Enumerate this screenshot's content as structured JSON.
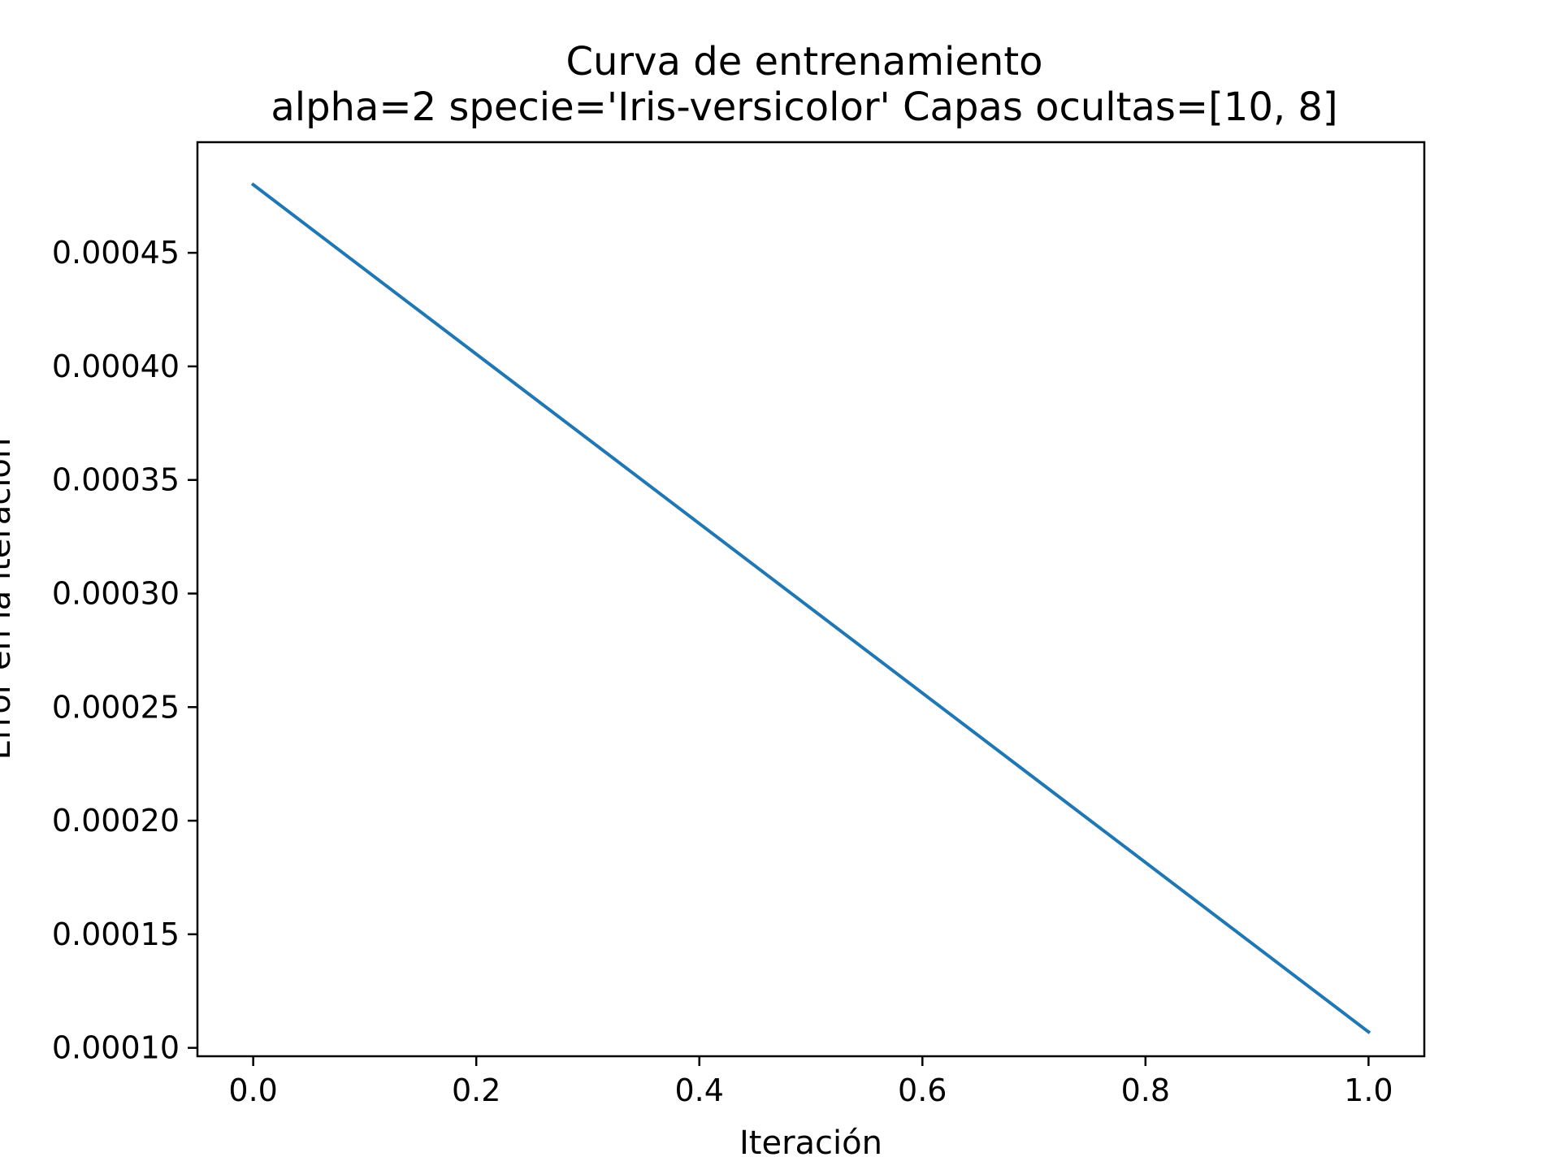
{
  "chart_data": {
    "type": "line",
    "title": "Curva de entrenamiento",
    "subtitle": "alpha=2 specie='Iris-versicolor' Capas ocultas=[10, 8]",
    "xlabel": "Iteración",
    "ylabel": "Error en la iteración",
    "x": [
      0,
      1
    ],
    "series": [
      {
        "values": [
          0.00048,
          0.000107
        ],
        "color": "#1f77b4"
      }
    ],
    "xlim": [
      -0.05,
      1.05
    ],
    "ylim": [
      9.63e-05,
      0.0004987
    ],
    "xticks": [
      {
        "value": 0.0,
        "label": "0.0"
      },
      {
        "value": 0.2,
        "label": "0.2"
      },
      {
        "value": 0.4,
        "label": "0.4"
      },
      {
        "value": 0.6,
        "label": "0.6"
      },
      {
        "value": 0.8,
        "label": "0.8"
      },
      {
        "value": 1.0,
        "label": "1.0"
      }
    ],
    "yticks": [
      {
        "value": 0.0001,
        "label": "0.00010"
      },
      {
        "value": 0.00015,
        "label": "0.00015"
      },
      {
        "value": 0.0002,
        "label": "0.00020"
      },
      {
        "value": 0.00025,
        "label": "0.00025"
      },
      {
        "value": 0.0003,
        "label": "0.00030"
      },
      {
        "value": 0.00035,
        "label": "0.00035"
      },
      {
        "value": 0.0004,
        "label": "0.00040"
      },
      {
        "value": 0.00045,
        "label": "0.00045"
      }
    ],
    "grid": false,
    "legend": false
  }
}
